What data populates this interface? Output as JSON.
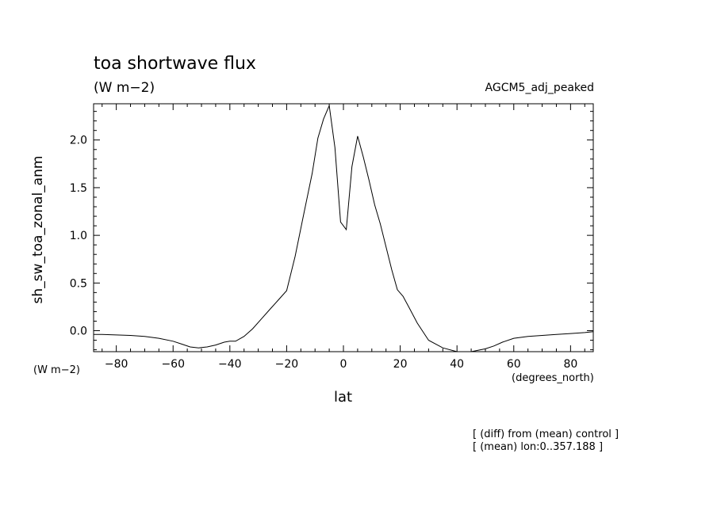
{
  "header": {
    "title": "toa shortwave flux",
    "units": "(W m−2)",
    "model": "AGCM5_adj_peaked"
  },
  "footer": {
    "note1": "[ (diff) from (mean) control ]",
    "note2": "[ (mean) lon:0..357.188 ]"
  },
  "chart_data": {
    "type": "line",
    "title": "toa shortwave flux",
    "subtitle": "(W m−2)",
    "xlabel": "lat",
    "xunits": "(degrees_north)",
    "ylabel": "sh_sw_toa_zonal_anm",
    "yunits": "(W m−2)",
    "xlim": [
      -88,
      88
    ],
    "ylim": [
      -0.22,
      2.38
    ],
    "xticks": [
      -80,
      -60,
      -40,
      -20,
      0,
      20,
      40,
      60,
      80
    ],
    "xtick_labels": [
      "−80",
      "−60",
      "−40",
      "−20",
      "0",
      "20",
      "40",
      "60",
      "80"
    ],
    "yticks": [
      0.0,
      0.5,
      1.0,
      1.5,
      2.0
    ],
    "ytick_labels": [
      "0.0",
      "0.5",
      "1.0",
      "1.5",
      "2.0"
    ],
    "grid": false,
    "line_color": "#000000",
    "series": [
      {
        "x": [
          -88,
          -85,
          -80,
          -75,
          -70,
          -65,
          -60,
          -57,
          -54,
          -51,
          -48,
          -45,
          -42,
          -40,
          -38,
          -35,
          -32,
          -29,
          -26,
          -23,
          -20,
          -17,
          -14,
          -11,
          -9,
          -7,
          -5,
          -3,
          -1,
          1,
          3,
          5,
          7,
          9,
          11,
          13,
          15,
          17,
          19,
          21,
          23,
          26,
          30,
          35,
          40,
          45,
          50,
          53,
          56,
          60,
          65,
          70,
          75,
          80,
          85,
          88
        ],
        "y": [
          -0.04,
          -0.04,
          -0.045,
          -0.05,
          -0.06,
          -0.08,
          -0.11,
          -0.14,
          -0.17,
          -0.18,
          -0.17,
          -0.15,
          -0.12,
          -0.11,
          -0.11,
          -0.06,
          0.02,
          0.12,
          0.22,
          0.32,
          0.42,
          0.78,
          1.22,
          1.65,
          2.02,
          2.22,
          2.36,
          1.92,
          1.14,
          1.06,
          1.72,
          2.04,
          1.82,
          1.58,
          1.32,
          1.12,
          0.88,
          0.64,
          0.43,
          0.36,
          0.25,
          0.08,
          -0.1,
          -0.18,
          -0.22,
          -0.22,
          -0.19,
          -0.16,
          -0.12,
          -0.08,
          -0.06,
          -0.05,
          -0.04,
          -0.03,
          -0.02,
          -0.01
        ]
      }
    ]
  }
}
